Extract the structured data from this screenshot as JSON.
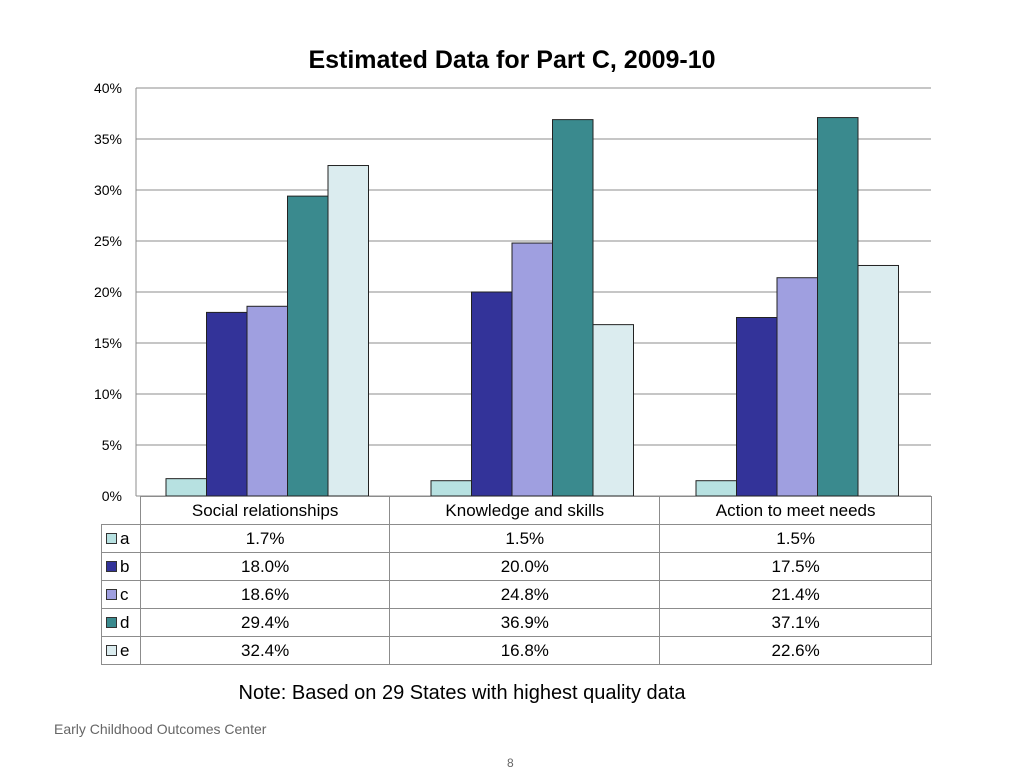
{
  "chart_data": {
    "type": "bar",
    "title": "Estimated Data for Part C, 2009-10",
    "categories": [
      "Social relationships",
      "Knowledge and skills",
      "Action to meet needs"
    ],
    "series": [
      {
        "name": "a",
        "values": [
          1.7,
          1.5,
          1.5
        ],
        "labels": [
          "1.7%",
          "1.5%",
          "1.5%"
        ],
        "color": "#b7e1e1"
      },
      {
        "name": "b",
        "values": [
          18.0,
          20.0,
          17.5
        ],
        "labels": [
          "18.0%",
          "20.0%",
          "17.5%"
        ],
        "color": "#333399"
      },
      {
        "name": "c",
        "values": [
          18.6,
          24.8,
          21.4
        ],
        "labels": [
          "18.6%",
          "24.8%",
          "21.4%"
        ],
        "color": "#9f9fe0"
      },
      {
        "name": "d",
        "values": [
          29.4,
          36.9,
          37.1
        ],
        "labels": [
          "29.4%",
          "36.9%",
          "37.1%"
        ],
        "color": "#3a8a8e"
      },
      {
        "name": "e",
        "values": [
          32.4,
          16.8,
          22.6
        ],
        "labels": [
          "32.4%",
          "16.8%",
          "22.6%"
        ],
        "color": "#dbecef"
      }
    ],
    "ylim": [
      0,
      40
    ],
    "yticks": [
      "0%",
      "5%",
      "10%",
      "15%",
      "20%",
      "25%",
      "30%",
      "35%",
      "40%"
    ],
    "grid": true,
    "legend": "data-table"
  },
  "note": "Note:  Based on 29 States with highest quality data",
  "footer": "Early Childhood Outcomes Center",
  "page_number": "8"
}
